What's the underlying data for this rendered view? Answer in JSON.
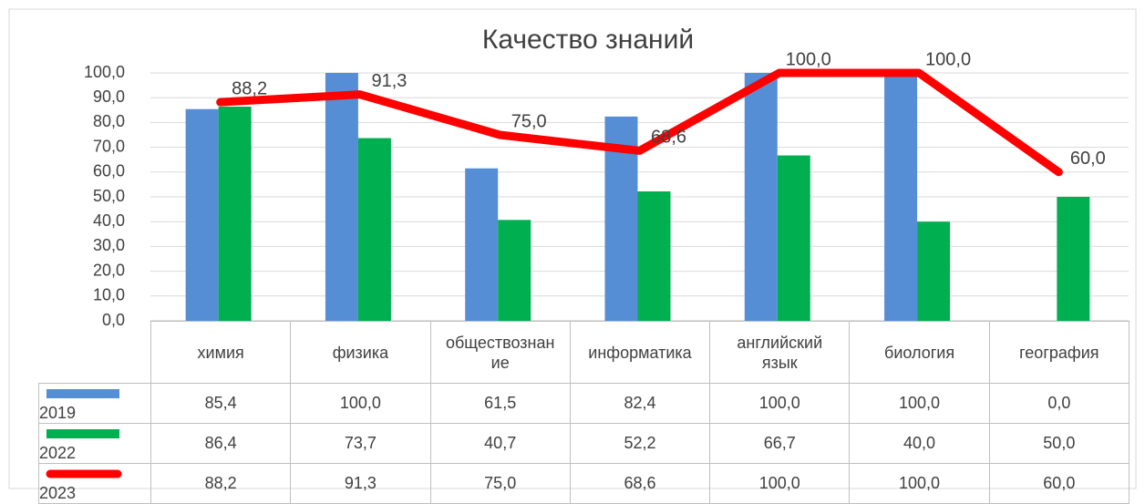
{
  "chart_data": {
    "type": "bar",
    "title": "Качество знаний",
    "categories": [
      "химия",
      "физика",
      "обществознание",
      "информатика",
      "английский язык",
      "биология",
      "география"
    ],
    "series": [
      {
        "name": "2019",
        "type": "bar",
        "color": "#558ed5",
        "values": [
          85.4,
          100,
          61.5,
          82.4,
          100,
          100,
          0
        ],
        "value_labels": [
          "85,4",
          "100,0",
          "61,5",
          "82,4",
          "100,0",
          "100,0",
          "0,0"
        ]
      },
      {
        "name": "2022",
        "type": "bar",
        "color": "#00b050",
        "values": [
          86.4,
          73.7,
          40.7,
          52.2,
          66.7,
          40,
          50
        ],
        "value_labels": [
          "86,4",
          "73,7",
          "40,7",
          "52,2",
          "66,7",
          "40,0",
          "50,0"
        ]
      },
      {
        "name": "2023",
        "type": "line",
        "color": "#ff0000",
        "values": [
          88.2,
          91.3,
          75,
          68.6,
          100,
          100,
          60
        ],
        "value_labels": [
          "88,2",
          "91,3",
          "75,0",
          "68,6",
          "100,0",
          "100,0",
          "60,0"
        ]
      }
    ],
    "ylim": [
      0,
      100
    ],
    "yticks": [
      {
        "value": 0,
        "label": "0,0"
      },
      {
        "value": 10,
        "label": "10,0"
      },
      {
        "value": 20,
        "label": "20,0"
      },
      {
        "value": 30,
        "label": "30,0"
      },
      {
        "value": 40,
        "label": "40,0"
      },
      {
        "value": 50,
        "label": "50,0"
      },
      {
        "value": 60,
        "label": "60,0"
      },
      {
        "value": 70,
        "label": "70,0"
      },
      {
        "value": 80,
        "label": "80,0"
      },
      {
        "value": 90,
        "label": "90,0"
      },
      {
        "value": 100,
        "label": "100,0"
      }
    ],
    "grid": true,
    "data_table": true
  }
}
